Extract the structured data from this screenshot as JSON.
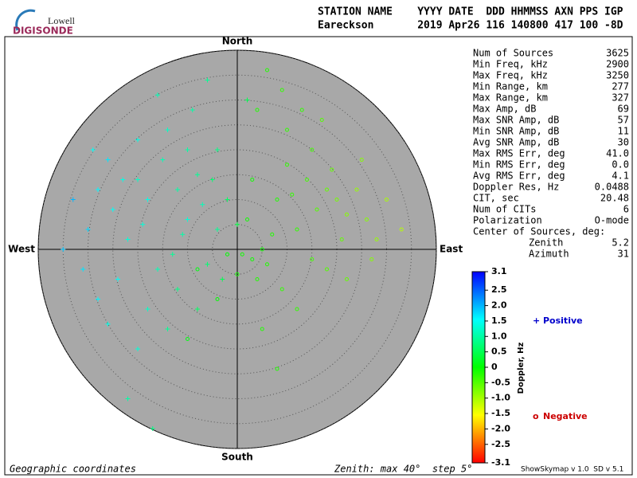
{
  "header": {
    "logo_top": "Lowell",
    "logo_bottom": "DIGISONDE",
    "line1": "STATION NAME    YYYY DATE  DDD HHMMSS AXN PPS IGP",
    "line2": "Eareckson       2019 Apr26 116 140800 417 100 -8D"
  },
  "stats": {
    "rows": [
      [
        "Num of Sources",
        "3625"
      ],
      [
        "Min Freq, kHz",
        "2900"
      ],
      [
        "Max Freq, kHz",
        "3250"
      ],
      [
        "Min Range, km",
        "277"
      ],
      [
        "Max Range, km",
        "327"
      ],
      [
        "Max Amp, dB",
        "69"
      ],
      [
        "Max SNR Amp, dB",
        "57"
      ],
      [
        "Min SNR Amp, dB",
        "11"
      ],
      [
        "Avg SNR Amp, dB",
        "30"
      ],
      [
        "Max RMS Err, deg",
        "41.0"
      ],
      [
        "Min RMS Err, deg",
        "0.0"
      ],
      [
        "Avg RMS Err, deg",
        "4.1"
      ],
      [
        "Doppler Res, Hz",
        "0.0488"
      ],
      [
        "CIT, sec",
        "20.48"
      ],
      [
        "Num of CITs",
        "6"
      ],
      [
        "Polarization",
        "O-mode"
      ]
    ],
    "center_title": "Center of Sources, deg:",
    "center_rows": [
      [
        "Zenith",
        "5.2"
      ],
      [
        "Azimuth",
        "31"
      ]
    ]
  },
  "footer": {
    "left": "Geographic coordinates",
    "middle": "Zenith: max 40°  step 5°",
    "right": "ShowSkymap v 1.0  SD v 5.1"
  },
  "chart_data": {
    "type": "polar-scatter",
    "directions": {
      "north": "North",
      "south": "South",
      "east": "East",
      "west": "West"
    },
    "rlim": [
      0,
      40
    ],
    "rticks": [
      5,
      10,
      15,
      20,
      25,
      30,
      35,
      40
    ],
    "series": [
      {
        "name": "Positive",
        "marker": "+",
        "color": "#0000cc",
        "x": [
          -20,
          -18,
          -15,
          -12,
          -10,
          -8,
          -25,
          -28,
          -22,
          -30,
          -16,
          -12,
          -6,
          -4,
          -2,
          -14,
          -20,
          -9,
          -4,
          -26,
          -33,
          -35,
          -24,
          -18,
          -20,
          -14,
          -8,
          -28,
          -6,
          2,
          -16,
          -11,
          -7,
          -19,
          -23,
          -13,
          -29,
          -3,
          -22,
          -17,
          0,
          -5,
          -31,
          -10,
          -26
        ],
        "y": [
          14,
          10,
          18,
          12,
          6,
          15,
          8,
          12,
          2,
          4,
          -4,
          -8,
          -3,
          4,
          10,
          24,
          22,
          28,
          20,
          18,
          10,
          0,
          -6,
          -12,
          -20,
          -16,
          -12,
          -10,
          34,
          30,
          31,
          3,
          9,
          5,
          14,
          -1,
          20,
          -6,
          -30,
          -36,
          5,
          14,
          -4,
          20,
          -15
        ],
        "doppler": [
          1.2,
          1.4,
          1.1,
          1.0,
          1.3,
          0.9,
          1.5,
          1.6,
          1.3,
          1.8,
          1.1,
          0.8,
          0.7,
          0.9,
          0.6,
          1.2,
          1.4,
          1.0,
          0.8,
          1.7,
          2.0,
          1.9,
          1.5,
          1.2,
          1.3,
          0.9,
          0.6,
          1.6,
          0.9,
          0.5,
          1.1,
          1.0,
          1.1,
          1.3,
          1.4,
          0.9,
          1.5,
          0.5,
          1.0,
          0.8,
          0.4,
          0.7,
          1.7,
          1.0,
          1.4
        ]
      },
      {
        "name": "Negative",
        "marker": "o",
        "color": "#cc0000",
        "x": [
          18,
          16,
          20,
          14,
          22,
          12,
          10,
          24,
          26,
          8,
          5,
          3,
          6,
          1,
          -2,
          4,
          0,
          7,
          15,
          10,
          4,
          13,
          19,
          28,
          30,
          25,
          21,
          15,
          9,
          12,
          18,
          6,
          17,
          11,
          2,
          -4,
          -10,
          5,
          8,
          22,
          33,
          3,
          -8,
          9,
          27
        ],
        "y": [
          12,
          8,
          10,
          14,
          7,
          4,
          17,
          12,
          6,
          10,
          0,
          -2,
          -3,
          -1,
          -1,
          -6,
          -5,
          3,
          20,
          24,
          28,
          28,
          16,
          2,
          10,
          18,
          2,
          -2,
          -8,
          -12,
          -4,
          36,
          26,
          11,
          6,
          -10,
          -18,
          -16,
          -24,
          -6,
          4,
          14,
          -4,
          32,
          -2
        ],
        "doppler": [
          -0.6,
          -0.5,
          -0.7,
          -0.4,
          -0.8,
          -0.3,
          -0.3,
          -0.9,
          -0.8,
          -0.2,
          -0.1,
          -0.1,
          -0.2,
          -0.1,
          0,
          -0.2,
          -0.1,
          -0.2,
          -0.4,
          -0.3,
          -0.2,
          -0.3,
          -0.6,
          -0.9,
          -1.0,
          -0.8,
          -0.6,
          -0.4,
          -0.3,
          -0.3,
          -0.5,
          -0.2,
          -0.5,
          -0.3,
          -0.1,
          0,
          0.1,
          -0.2,
          -0.2,
          -0.6,
          -1.1,
          -0.1,
          0.1,
          -0.3,
          -0.8
        ]
      }
    ],
    "colorbar": {
      "label": "Doppler, Hz",
      "lim": [
        -3.1,
        3.1
      ],
      "ticks": [
        3.1,
        2.5,
        {
          "value": 2,
          "label": "2.0"
        },
        1.5,
        {
          "value": 1,
          "label": "1.0"
        },
        0.5,
        0,
        -0.5,
        {
          "value": -1,
          "label": "-1.0"
        },
        -1.5,
        {
          "value": -2,
          "label": "-2.0"
        },
        -2.5,
        -3.1
      ]
    }
  }
}
